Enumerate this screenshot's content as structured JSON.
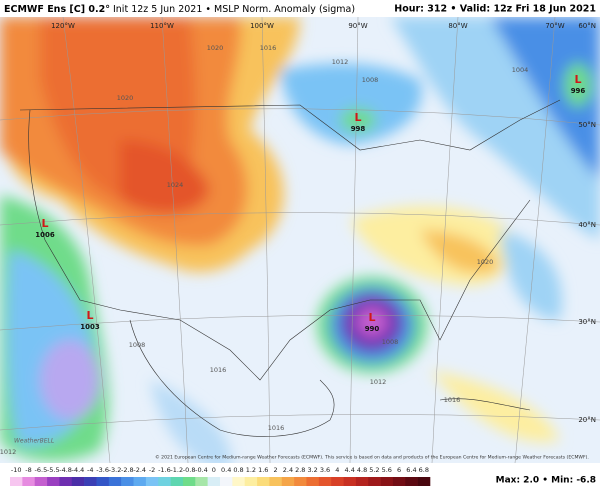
{
  "header": {
    "title_bold": "ECMWF Ens [C] 0.2°",
    "title_rest": "Init 12z 5 Jun 2021 • MSLP Norm. Anomaly (sigma)",
    "hour": "Hour: 312 • Valid: 12z Fri 18 Jun 2021"
  },
  "map": {
    "lon_labels": [
      "120°W",
      "110°W",
      "100°W",
      "90°W",
      "80°W",
      "70°W"
    ],
    "lat_labels": [
      "60°N",
      "50°N",
      "40°N",
      "30°N",
      "20°N"
    ],
    "isobar_labels": [
      "1020",
      "1020",
      "1016",
      "1012",
      "1008",
      "1004",
      "1024",
      "1008",
      "1016",
      "1012",
      "1016",
      "1020",
      "1016",
      "1008",
      "1012"
    ],
    "lows": [
      "1006",
      "1003",
      "998",
      "996",
      "990"
    ],
    "logo": "WeatherBELL"
  },
  "colorbar": {
    "labels": [
      "-10",
      "-8",
      "-6.5",
      "-5.5",
      "-4.8",
      "-4.4",
      "-4",
      "-3.6",
      "-3.2",
      "-2.8",
      "-2.4",
      "-2",
      "-1.6",
      "-1.2",
      "-0.8",
      "-0.4",
      "0",
      "0.4",
      "0.8",
      "1.2",
      "1.6",
      "2",
      "2.4",
      "2.8",
      "3.2",
      "3.6",
      "4",
      "4.4",
      "4.8",
      "5.2",
      "5.6",
      "6",
      "6.4",
      "6.8"
    ]
  },
  "footer": {
    "copyright": "© 2021 European Centre for Medium-range Weather Forecasts (ECMWF). This service is based on data and products of the European Centre for Medium-range Weather Forecasts (ECMWF).",
    "stats": "Max: 2.0 • Min: -6.8"
  }
}
